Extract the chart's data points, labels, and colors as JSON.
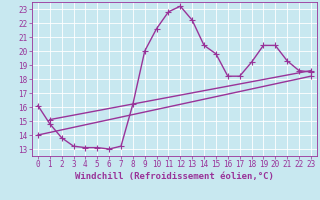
{
  "xlabel": "Windchill (Refroidissement éolien,°C)",
  "bg_color": "#c8e8f0",
  "grid_color": "#b0d8e8",
  "line_color": "#993399",
  "xlim": [
    -0.5,
    23.5
  ],
  "ylim": [
    12.5,
    23.5
  ],
  "xticks": [
    0,
    1,
    2,
    3,
    4,
    5,
    6,
    7,
    8,
    9,
    10,
    11,
    12,
    13,
    14,
    15,
    16,
    17,
    18,
    19,
    20,
    21,
    22,
    23
  ],
  "yticks": [
    13,
    14,
    15,
    16,
    17,
    18,
    19,
    20,
    21,
    22,
    23
  ],
  "line1_x": [
    0,
    1,
    2,
    3,
    4,
    5,
    6,
    7,
    8,
    9,
    10,
    11,
    12,
    13,
    14,
    15,
    16,
    17,
    18,
    19,
    20,
    21,
    22,
    23
  ],
  "line1_y": [
    16.1,
    14.8,
    13.8,
    13.2,
    13.1,
    13.1,
    13.0,
    13.2,
    16.2,
    20.0,
    21.6,
    22.8,
    23.2,
    22.2,
    20.4,
    19.8,
    18.2,
    18.2,
    19.2,
    20.4,
    20.4,
    19.3,
    18.6,
    18.5
  ],
  "line3_x": [
    0,
    23
  ],
  "line3_y": [
    14.0,
    18.2
  ],
  "line4_x": [
    1,
    23
  ],
  "line4_y": [
    15.1,
    18.6
  ],
  "linewidth": 1.0,
  "markersize": 3,
  "xlabel_fontsize": 6.5,
  "tick_fontsize": 5.5
}
